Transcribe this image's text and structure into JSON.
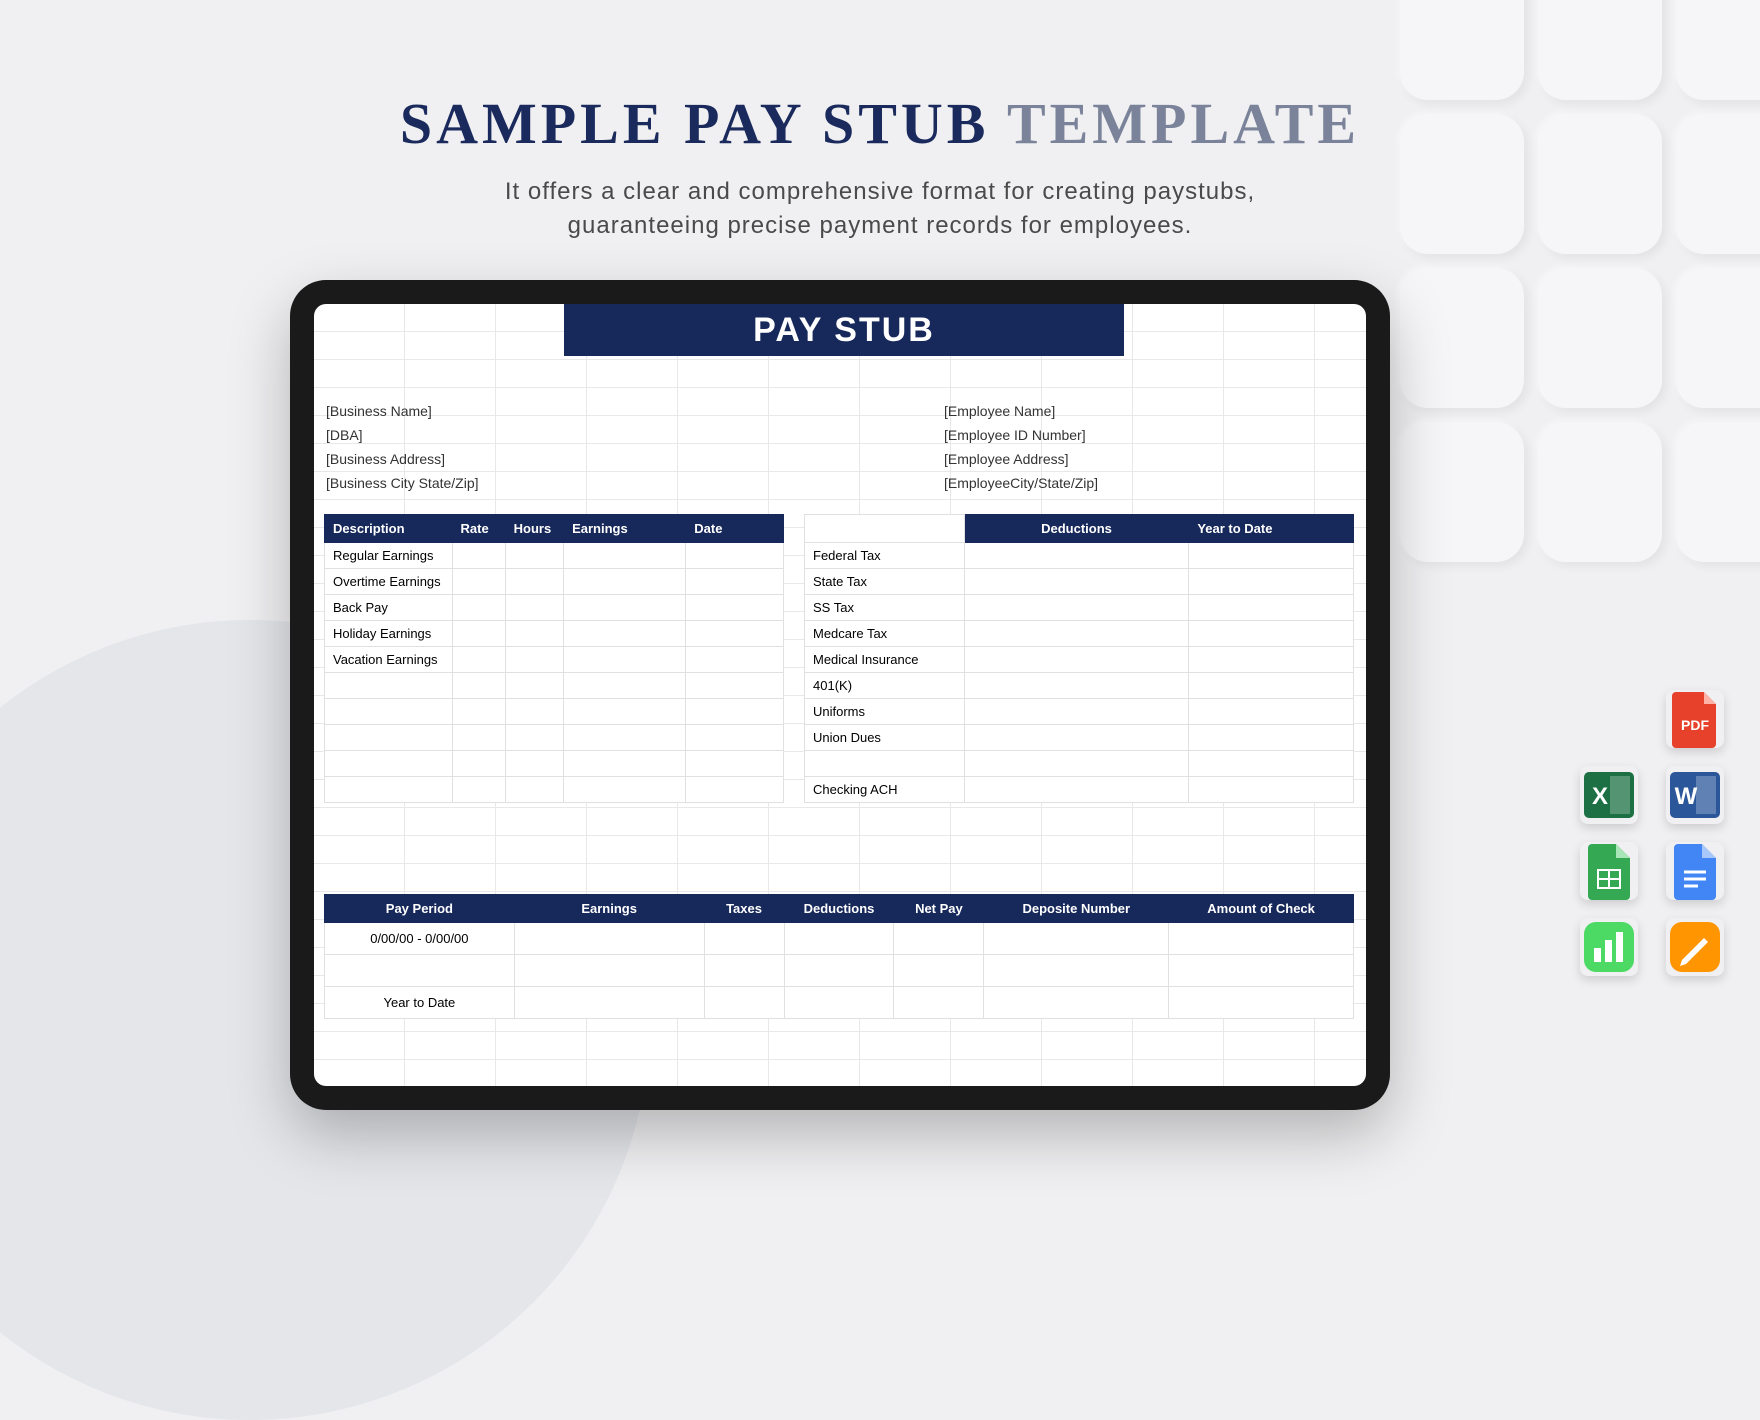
{
  "heading": {
    "part1": "SAMPLE PAY STUB",
    "part2": "TEMPLATE"
  },
  "subheading": "It offers a clear and comprehensive format for creating paystubs,\nguaranteeing precise payment records for employees.",
  "banner": "PAY STUB",
  "business": {
    "name": "[Business Name]",
    "dba": "[DBA]",
    "address": "[Business Address]",
    "citystatezip": "[Business City State/Zip]"
  },
  "employee": {
    "name": "[Employee Name]",
    "id": "[Employee ID Number]",
    "address": "[Employee Address]",
    "citystatezip": "[EmployeeCity/State/Zip]"
  },
  "earnings": {
    "headers": [
      "Description",
      "Rate",
      "Hours",
      "Earnings",
      "Date"
    ],
    "rows": [
      [
        "Regular Earnings",
        "",
        "",
        "",
        ""
      ],
      [
        "Overtime Earnings",
        "",
        "",
        "",
        ""
      ],
      [
        "Back Pay",
        "",
        "",
        "",
        ""
      ],
      [
        "Holiday Earnings",
        "",
        "",
        "",
        ""
      ],
      [
        "Vacation Earnings",
        "",
        "",
        "",
        ""
      ],
      [
        "",
        "",
        "",
        "",
        ""
      ],
      [
        "",
        "",
        "",
        "",
        ""
      ],
      [
        "",
        "",
        "",
        "",
        ""
      ],
      [
        "",
        "",
        "",
        "",
        ""
      ],
      [
        "",
        "",
        "",
        "",
        ""
      ]
    ]
  },
  "deductions": {
    "headers": [
      "",
      "Deductions",
      "Year to Date"
    ],
    "rows": [
      [
        "Federal Tax",
        "",
        ""
      ],
      [
        "State Tax",
        "",
        ""
      ],
      [
        "SS Tax",
        "",
        ""
      ],
      [
        "Medcare Tax",
        "",
        ""
      ],
      [
        "Medical Insurance",
        "",
        ""
      ],
      [
        "401(K)",
        "",
        ""
      ],
      [
        "Uniforms",
        "",
        ""
      ],
      [
        "Union Dues",
        "",
        ""
      ],
      [
        "",
        "",
        ""
      ],
      [
        "Checking ACH",
        "",
        ""
      ]
    ]
  },
  "summary": {
    "headers": [
      "Pay Period",
      "Earnings",
      "Taxes",
      "Deductions",
      "Net Pay",
      "Deposite Number",
      "Amount of Check"
    ],
    "rows": [
      [
        "0/00/00 - 0/00/00",
        "",
        "",
        "",
        "",
        "",
        ""
      ],
      [
        "",
        "",
        "",
        "",
        "",
        "",
        ""
      ],
      [
        "Year to Date",
        "",
        "",
        "",
        "",
        "",
        ""
      ]
    ]
  },
  "colors": {
    "brand_navy": "#17285a",
    "heading_navy": "#1a2a5c",
    "heading_grey": "#7a8399",
    "page_bg": "#f0f0f2",
    "grid_line": "#e8e8e8"
  },
  "fileicons": {
    "pdf": {
      "label": "PDF",
      "bg": "#E8412B",
      "text": "PDF"
    },
    "excel": {
      "label": "Excel",
      "bg": "#1D7044",
      "text": "X"
    },
    "word": {
      "label": "Word",
      "bg": "#2B579A",
      "text": "W"
    },
    "sheets": {
      "label": "Google Sheets",
      "bg": "#34A853",
      "text": ""
    },
    "docs": {
      "label": "Google Docs",
      "bg": "#4285F4",
      "text": ""
    },
    "numbers": {
      "label": "Numbers",
      "bg": "#4CD964",
      "text": ""
    },
    "pages": {
      "label": "Pages",
      "bg": "#FF9500",
      "text": ""
    }
  }
}
